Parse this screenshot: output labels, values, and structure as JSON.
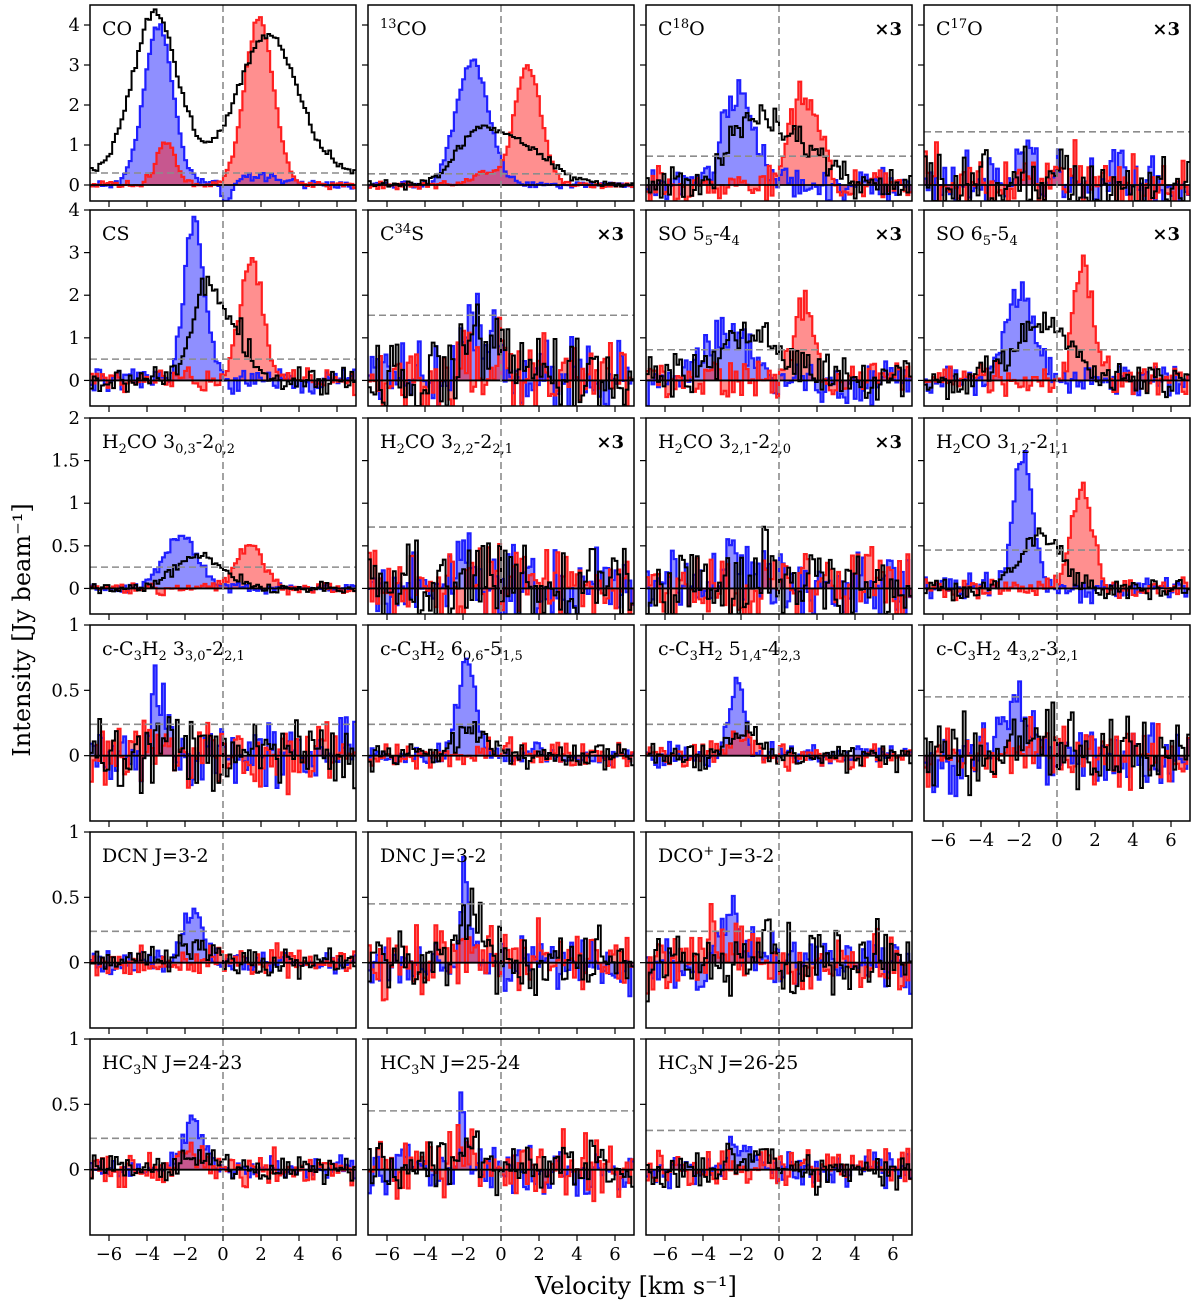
{
  "figure": {
    "xlabel": "Velocity [km s⁻¹]",
    "ylabel": "Intensity [Jy beam⁻¹]"
  },
  "colors": {
    "blue": "#1f1fff",
    "red": "#ff1f1f",
    "black": "#000000",
    "noise": "#8c8c8c",
    "zero": "#000000"
  },
  "chart_data": {
    "type": "step-area",
    "xlim": [
      -7,
      7
    ],
    "x_ticks": [
      -6,
      -4,
      -2,
      0,
      2,
      4,
      6
    ],
    "series_names": [
      "blue",
      "red",
      "black"
    ],
    "note_scale": "×3",
    "panels": [
      {
        "id": "CO",
        "row": 0,
        "col": 0,
        "label": "CO",
        "ylim": [
          -0.4,
          4.5
        ],
        "yticks": [
          0,
          1,
          2,
          3,
          4
        ],
        "xlabels": false,
        "scale3": false,
        "noise": 0.3,
        "blue": {
          "peak": 4.0,
          "center": -3.4,
          "width": 0.75,
          "noise": 0.05,
          "seed": 11,
          "wing": {
            "peak": 0.22,
            "center": 1.5,
            "width": 1.7
          },
          "dip": {
            "depth": 0.7,
            "center": 0.2,
            "width": 0.25
          }
        },
        "red": {
          "peak": 4.2,
          "center": 1.9,
          "width": 0.75,
          "noise": 0.05,
          "seed": 12,
          "wing": {
            "peak": 1.1,
            "center": -3.0,
            "width": 0.5
          }
        },
        "black": {
          "peak": 3.8,
          "center": -3.6,
          "width": 1.15,
          "noise": 0.06,
          "seed": 13,
          "wing": {
            "peak": 3.2,
            "center": 2.4,
            "width": 1.5
          },
          "wide": 0.6
        }
      },
      {
        "id": "13CO",
        "row": 0,
        "col": 1,
        "label": "13CO",
        "ylim": [
          -0.4,
          4.5
        ],
        "yticks": [
          0,
          1,
          2,
          3,
          4
        ],
        "xlabels": false,
        "scale3": false,
        "noise": 0.28,
        "blue": {
          "peak": 3.1,
          "center": -1.5,
          "width": 0.85,
          "noise": 0.04,
          "seed": 21
        },
        "red": {
          "peak": 3.0,
          "center": 1.4,
          "width": 0.7,
          "noise": 0.04,
          "seed": 22,
          "wing": {
            "peak": 0.3,
            "center": -1.0,
            "width": 0.6
          }
        },
        "black": {
          "peak": 1.15,
          "center": 0.6,
          "width": 1.7,
          "noise": 0.05,
          "seed": 23,
          "wing": {
            "peak": 0.8,
            "center": -1.5,
            "width": 1.0
          }
        }
      },
      {
        "id": "C18O",
        "row": 0,
        "col": 2,
        "label": "C18O",
        "ylim": [
          -0.4,
          4.5
        ],
        "yticks": [
          0,
          1,
          2,
          3,
          4
        ],
        "xlabels": false,
        "scale3": true,
        "noise": 0.72,
        "blue": {
          "peak": 2.3,
          "center": -2.1,
          "width": 0.85,
          "noise": 0.2,
          "seed": 31
        },
        "red": {
          "peak": 2.2,
          "center": 1.3,
          "width": 0.8,
          "noise": 0.2,
          "seed": 32
        },
        "black": {
          "peak": 1.8,
          "center": -1.2,
          "width": 1.2,
          "noise": 0.2,
          "seed": 33,
          "wing": {
            "peak": 0.9,
            "center": 1.5,
            "width": 1.2
          }
        }
      },
      {
        "id": "C17O",
        "row": 0,
        "col": 3,
        "label": "C17O",
        "ylim": [
          -0.4,
          4.5
        ],
        "yticks": [
          0,
          1,
          2,
          3,
          4
        ],
        "xlabels": false,
        "scale3": true,
        "noise": 1.33,
        "blue": {
          "peak": 0.9,
          "center": -1.5,
          "width": 0.45,
          "noise": 0.4,
          "seed": 41
        },
        "red": {
          "peak": 0.3,
          "center": 0.5,
          "width": 1.0,
          "noise": 0.4,
          "seed": 42
        },
        "black": {
          "peak": 0.3,
          "center": -1.0,
          "width": 1.0,
          "noise": 0.4,
          "seed": 43
        }
      },
      {
        "id": "CS",
        "row": 1,
        "col": 0,
        "label": "CS",
        "ylim": [
          -0.6,
          4.0
        ],
        "yticks": [
          0,
          1,
          2,
          3,
          4
        ],
        "xlabels": false,
        "scale3": false,
        "noise": 0.5,
        "blue": {
          "peak": 3.6,
          "center": -1.5,
          "width": 0.55,
          "noise": 0.15,
          "seed": 51
        },
        "red": {
          "peak": 2.8,
          "center": 1.5,
          "width": 0.6,
          "noise": 0.15,
          "seed": 52
        },
        "black": {
          "peak": 2.3,
          "center": -0.8,
          "width": 0.8,
          "noise": 0.15,
          "seed": 53,
          "wing": {
            "peak": 0.9,
            "center": 0.8,
            "width": 0.6
          }
        }
      },
      {
        "id": "C34S",
        "row": 1,
        "col": 1,
        "label": "C34S",
        "ylim": [
          -0.6,
          4.0
        ],
        "yticks": [
          0,
          1,
          2,
          3,
          4
        ],
        "xlabels": false,
        "scale3": true,
        "noise": 1.53,
        "blue": {
          "peak": 1.3,
          "center": -1.3,
          "width": 0.9,
          "noise": 0.45,
          "seed": 61
        },
        "red": {
          "peak": 0.5,
          "center": -0.5,
          "width": 1.2,
          "noise": 0.45,
          "seed": 62
        },
        "black": {
          "peak": 0.9,
          "center": -1.0,
          "width": 1.3,
          "noise": 0.45,
          "seed": 63
        }
      },
      {
        "id": "SO_55-44",
        "row": 1,
        "col": 2,
        "label": "SO 55-44",
        "ylim": [
          -0.6,
          4.0
        ],
        "yticks": [
          0,
          1,
          2,
          3,
          4
        ],
        "xlabels": false,
        "scale3": true,
        "noise": 0.72,
        "blue": {
          "peak": 1.2,
          "center": -2.8,
          "width": 1.1,
          "noise": 0.25,
          "seed": 71
        },
        "red": {
          "peak": 1.7,
          "center": 1.3,
          "width": 0.55,
          "noise": 0.25,
          "seed": 72
        },
        "black": {
          "peak": 1.0,
          "center": -1.5,
          "width": 1.7,
          "noise": 0.25,
          "seed": 73
        }
      },
      {
        "id": "SO_65-54",
        "row": 1,
        "col": 3,
        "label": "SO 65-54",
        "ylim": [
          -0.6,
          4.0
        ],
        "yticks": [
          0,
          1,
          2,
          3,
          4
        ],
        "xlabels": false,
        "scale3": true,
        "noise": 0.72,
        "blue": {
          "peak": 2.1,
          "center": -2.0,
          "width": 0.75,
          "noise": 0.2,
          "seed": 81
        },
        "red": {
          "peak": 2.6,
          "center": 1.4,
          "width": 0.5,
          "noise": 0.2,
          "seed": 82
        },
        "black": {
          "peak": 1.4,
          "center": -0.8,
          "width": 1.4,
          "noise": 0.2,
          "seed": 83
        }
      },
      {
        "id": "H2CO_303-202",
        "row": 2,
        "col": 0,
        "label": "H2CO 30,3-20,2",
        "ylim": [
          -0.3,
          2.0
        ],
        "yticks": [
          0,
          0.5,
          1.0,
          1.5,
          2.0
        ],
        "xlabels": false,
        "scale3": false,
        "noise": 0.25,
        "blue": {
          "peak": 0.62,
          "center": -2.2,
          "width": 0.85,
          "noise": 0.03,
          "seed": 91
        },
        "red": {
          "peak": 0.52,
          "center": 1.4,
          "width": 0.7,
          "noise": 0.03,
          "seed": 92
        },
        "black": {
          "peak": 0.38,
          "center": -1.2,
          "width": 1.3,
          "noise": 0.03,
          "seed": 93
        }
      },
      {
        "id": "H2CO_322-221",
        "row": 2,
        "col": 1,
        "label": "H2CO 32,2-22,1",
        "ylim": [
          -0.3,
          2.0
        ],
        "yticks": [
          0,
          0.5,
          1.0,
          1.5,
          2.0
        ],
        "xlabels": false,
        "scale3": true,
        "noise": 0.72,
        "blue": {
          "peak": 0.6,
          "center": -1.8,
          "width": 0.35,
          "noise": 0.25,
          "seed": 101
        },
        "red": {
          "peak": 0.1,
          "center": 0.0,
          "width": 1.0,
          "noise": 0.25,
          "seed": 102
        },
        "black": {
          "peak": 0.2,
          "center": -0.5,
          "width": 1.0,
          "noise": 0.25,
          "seed": 103
        }
      },
      {
        "id": "H2CO_321-220",
        "row": 2,
        "col": 2,
        "label": "H2CO 32,1-22,0",
        "ylim": [
          -0.3,
          2.0
        ],
        "yticks": [
          0,
          0.5,
          1.0,
          1.5,
          2.0
        ],
        "xlabels": false,
        "scale3": true,
        "noise": 0.72,
        "blue": {
          "peak": 0.35,
          "center": -2.5,
          "width": 0.6,
          "noise": 0.22,
          "seed": 111
        },
        "red": {
          "peak": 0.1,
          "center": 0.5,
          "width": 1.0,
          "noise": 0.22,
          "seed": 112
        },
        "black": {
          "peak": 0.15,
          "center": -1.0,
          "width": 1.0,
          "noise": 0.22,
          "seed": 113
        }
      },
      {
        "id": "H2CO_312-211",
        "row": 2,
        "col": 3,
        "label": "H2CO 31,2-21,1",
        "ylim": [
          -0.3,
          2.0
        ],
        "yticks": [
          0,
          0.5,
          1.0,
          1.5,
          2.0
        ],
        "xlabels": false,
        "scale3": false,
        "noise": 0.45,
        "blue": {
          "peak": 1.6,
          "center": -1.8,
          "width": 0.5,
          "noise": 0.07,
          "seed": 121
        },
        "red": {
          "peak": 1.15,
          "center": 1.3,
          "width": 0.55,
          "noise": 0.07,
          "seed": 122
        },
        "black": {
          "peak": 0.65,
          "center": -0.8,
          "width": 1.0,
          "noise": 0.07,
          "seed": 123
        }
      },
      {
        "id": "cC3H2_330-221",
        "row": 3,
        "col": 0,
        "label": "c-C3H2 33,0-22,1",
        "ylim": [
          -0.5,
          1.0
        ],
        "yticks": [
          0,
          0.5,
          1.0
        ],
        "xlabels": false,
        "scale3": false,
        "noise": 0.24,
        "blue": {
          "peak": 0.42,
          "center": -3.4,
          "width": 0.5,
          "noise": 0.12,
          "seed": 131
        },
        "red": {
          "peak": 0.1,
          "center": -4.0,
          "width": 1.0,
          "noise": 0.13,
          "seed": 132
        },
        "black": {
          "peak": 0.1,
          "center": -2.0,
          "width": 1.0,
          "noise": 0.14,
          "seed": 133
        }
      },
      {
        "id": "cC3H2_606-515",
        "row": 3,
        "col": 1,
        "label": "c-C3H2 60,6-51,5",
        "ylim": [
          -0.5,
          1.0
        ],
        "yticks": [
          0,
          0.5,
          1.0
        ],
        "xlabels": false,
        "scale3": false,
        "noise": 0.24,
        "blue": {
          "peak": 0.75,
          "center": -1.8,
          "width": 0.45,
          "noise": 0.04,
          "seed": 141
        },
        "red": {
          "peak": 0.05,
          "center": 0.5,
          "width": 1.0,
          "noise": 0.05,
          "seed": 142
        },
        "black": {
          "peak": 0.2,
          "center": -1.5,
          "width": 0.8,
          "noise": 0.05,
          "seed": 143
        }
      },
      {
        "id": "cC3H2_514-423",
        "row": 3,
        "col": 2,
        "label": "c-C3H2 51,4-42,3",
        "ylim": [
          -0.5,
          1.0
        ],
        "yticks": [
          0,
          0.5,
          1.0
        ],
        "xlabels": false,
        "scale3": false,
        "noise": 0.24,
        "blue": {
          "peak": 0.55,
          "center": -2.2,
          "width": 0.4,
          "noise": 0.04,
          "seed": 151
        },
        "red": {
          "peak": 0.15,
          "center": -2.0,
          "width": 0.6,
          "noise": 0.05,
          "seed": 152
        },
        "black": {
          "peak": 0.18,
          "center": -2.0,
          "width": 0.8,
          "noise": 0.05,
          "seed": 153
        }
      },
      {
        "id": "cC3H2_432-321",
        "row": 3,
        "col": 3,
        "label": "c-C3H2 43,2-32,1",
        "ylim": [
          -0.5,
          1.0
        ],
        "yticks": [
          0,
          0.5,
          1.0
        ],
        "xlabels": true,
        "scale3": false,
        "noise": 0.45,
        "blue": {
          "peak": 0.4,
          "center": -2.2,
          "width": 0.7,
          "noise": 0.12,
          "seed": 161
        },
        "red": {
          "peak": 0.1,
          "center": -1.5,
          "width": 1.0,
          "noise": 0.12,
          "seed": 162
        },
        "black": {
          "peak": 0.15,
          "center": -1.5,
          "width": 1.0,
          "noise": 0.14,
          "seed": 163
        }
      },
      {
        "id": "DCN",
        "row": 4,
        "col": 0,
        "label": "DCN J=3-2",
        "ylim": [
          -0.5,
          1.0
        ],
        "yticks": [
          0,
          0.5,
          1.0
        ],
        "xlabels": false,
        "scale3": false,
        "noise": 0.24,
        "blue": {
          "peak": 0.38,
          "center": -1.6,
          "width": 0.5,
          "noise": 0.04,
          "seed": 171
        },
        "red": {
          "peak": 0.05,
          "center": 0.5,
          "width": 1.0,
          "noise": 0.06,
          "seed": 172
        },
        "black": {
          "peak": 0.12,
          "center": -1.5,
          "width": 1.0,
          "noise": 0.05,
          "seed": 173
        }
      },
      {
        "id": "DNC",
        "row": 4,
        "col": 1,
        "label": "DNC J=3-2",
        "ylim": [
          -0.5,
          1.0
        ],
        "yticks": [
          0,
          0.5,
          1.0
        ],
        "xlabels": false,
        "scale3": false,
        "noise": 0.45,
        "blue": {
          "peak": 0.55,
          "center": -1.9,
          "width": 0.3,
          "noise": 0.1,
          "seed": 181
        },
        "red": {
          "peak": 0.1,
          "center": -1.0,
          "width": 1.0,
          "noise": 0.12,
          "seed": 182
        },
        "black": {
          "peak": 0.35,
          "center": -1.6,
          "width": 0.6,
          "noise": 0.12,
          "seed": 183
        }
      },
      {
        "id": "DCO+",
        "row": 4,
        "col": 2,
        "label": "DCO+ J=3-2",
        "ylim": [
          -0.5,
          1.0
        ],
        "yticks": [
          0,
          0.5,
          1.0
        ],
        "xlabels": false,
        "scale3": false,
        "noise": 0.24,
        "blue": {
          "peak": 0.35,
          "center": -2.3,
          "width": 0.6,
          "noise": 0.12,
          "seed": 191
        },
        "red": {
          "peak": 0.15,
          "center": -3.0,
          "width": 1.0,
          "noise": 0.12,
          "seed": 192
        },
        "black": {
          "peak": 0.1,
          "center": -1.0,
          "width": 1.0,
          "noise": 0.13,
          "seed": 193
        }
      },
      {
        "id": "HC3N_24-23",
        "row": 5,
        "col": 0,
        "label": "HC3N J=24-23",
        "ylim": [
          -0.5,
          1.0
        ],
        "yticks": [
          0,
          0.5,
          1.0
        ],
        "xlabels": true,
        "scale3": false,
        "noise": 0.24,
        "blue": {
          "peak": 0.38,
          "center": -1.6,
          "width": 0.5,
          "noise": 0.04,
          "seed": 201
        },
        "red": {
          "peak": 0.12,
          "center": -1.8,
          "width": 0.6,
          "noise": 0.06,
          "seed": 202
        },
        "black": {
          "peak": 0.1,
          "center": -1.0,
          "width": 1.0,
          "noise": 0.05,
          "seed": 203
        }
      },
      {
        "id": "HC3N_25-24",
        "row": 5,
        "col": 1,
        "label": "HC3N J=25-24",
        "ylim": [
          -0.5,
          1.0
        ],
        "yticks": [
          0,
          0.5,
          1.0
        ],
        "xlabels": true,
        "scale3": false,
        "noise": 0.45,
        "blue": {
          "peak": 0.6,
          "center": -2.0,
          "width": 0.2,
          "noise": 0.1,
          "seed": 211
        },
        "red": {
          "peak": 0.2,
          "center": -1.8,
          "width": 0.4,
          "noise": 0.12,
          "seed": 212
        },
        "black": {
          "peak": 0.25,
          "center": -1.6,
          "width": 0.6,
          "noise": 0.1,
          "seed": 213
        }
      },
      {
        "id": "HC3N_26-25",
        "row": 5,
        "col": 2,
        "label": "HC3N J=26-25",
        "ylim": [
          -0.5,
          1.0
        ],
        "yticks": [
          0,
          0.5,
          1.0
        ],
        "xlabels": true,
        "scale3": false,
        "noise": 0.3,
        "blue": {
          "peak": 0.2,
          "center": -2.0,
          "width": 0.6,
          "noise": 0.06,
          "seed": 221
        },
        "red": {
          "peak": 0.05,
          "center": -1.0,
          "width": 1.0,
          "noise": 0.07,
          "seed": 222
        },
        "black": {
          "peak": 0.1,
          "center": -1.5,
          "width": 1.0,
          "noise": 0.07,
          "seed": 223
        }
      }
    ]
  }
}
